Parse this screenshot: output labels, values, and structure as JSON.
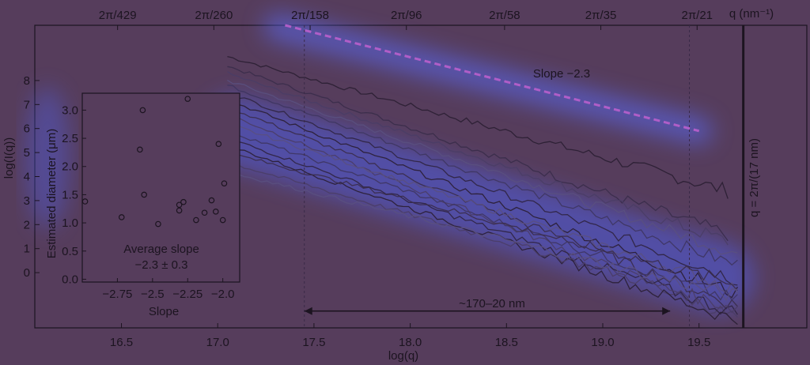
{
  "chart_data": [
    {
      "type": "line",
      "title": "",
      "xlabel": "log(q)",
      "ylabel": "log(I(q))",
      "xlim": [
        16.05,
        20.06
      ],
      "ylim": [
        -2.3,
        10.3
      ],
      "x_ticks": [
        16.5,
        17.0,
        17.5,
        18.0,
        18.5,
        19.0,
        19.5
      ],
      "x_tick_labels": [
        "16.5",
        "17.0",
        "17.5",
        "18.0",
        "18.5",
        "19.0",
        "19.5"
      ],
      "y_ticks": [
        0,
        1,
        2,
        3,
        4,
        5,
        6,
        7,
        8
      ],
      "y_tick_labels": [
        "0",
        "1",
        "2",
        "3",
        "4",
        "5",
        "6",
        "7",
        "8"
      ],
      "top_axis": {
        "label": "q (nm⁻¹)",
        "ticks": [
          {
            "x": 16.48,
            "label": "2π/429"
          },
          {
            "x": 16.98,
            "label": "2π/260"
          },
          {
            "x": 17.48,
            "label": "2π/158"
          },
          {
            "x": 17.98,
            "label": "2π/96"
          },
          {
            "x": 18.49,
            "label": "2π/58"
          },
          {
            "x": 18.99,
            "label": "2π/35"
          },
          {
            "x": 19.49,
            "label": "2π/21"
          }
        ]
      },
      "grid": false,
      "x_start": 17.05,
      "series": [
        {
          "x_end": 19.65,
          "y_start": 9.0,
          "y_end": 3.4
        },
        {
          "x_end": 19.65,
          "y_start": 8.6,
          "y_end": 1.6
        },
        {
          "x_end": 19.65,
          "y_start": 8.3,
          "y_end": 1.3
        },
        {
          "x_end": 19.7,
          "y_start": 8.0,
          "y_end": 0.8
        },
        {
          "x_end": 19.7,
          "y_start": 7.8,
          "y_end": 0.3
        },
        {
          "x_end": 19.7,
          "y_start": 7.5,
          "y_end": -0.3
        },
        {
          "x_end": 19.7,
          "y_start": 7.2,
          "y_end": -0.9
        },
        {
          "x_end": 19.7,
          "y_start": 6.9,
          "y_end": -1.4
        },
        {
          "x_end": 19.7,
          "y_start": 6.6,
          "y_end": -1.9
        },
        {
          "x_end": 19.7,
          "y_start": 6.2,
          "y_end": -0.7
        },
        {
          "x_end": 19.7,
          "y_start": 5.9,
          "y_end": -1.2
        },
        {
          "x_end": 19.7,
          "y_start": 5.6,
          "y_end": -1.7
        },
        {
          "x_end": 19.7,
          "y_start": 5.3,
          "y_end": -2.0
        },
        {
          "x_end": 19.7,
          "y_start": 5.0,
          "y_end": -0.5
        },
        {
          "x_end": 19.7,
          "y_start": 4.6,
          "y_end": -1.5
        },
        {
          "x_end": 19.7,
          "y_start": 4.2,
          "y_end": -1.0
        }
      ],
      "reference_line": {
        "label": "Slope −2.3",
        "x_start": 17.35,
        "y_start": 10.3,
        "x_end": 19.5,
        "y_end": 5.9
      },
      "vertical_line": {
        "x": 19.73,
        "label": "q = 2π/(17 nm)"
      },
      "range_arrow": {
        "x_start": 17.45,
        "x_end": 19.35,
        "y": -1.6,
        "label": "~170–20 nm"
      }
    },
    {
      "type": "scatter",
      "title": "",
      "xlabel": "Slope",
      "ylabel": "Estimated diameter (μm)",
      "xlim": [
        -3.0,
        -1.88
      ],
      "ylim": [
        -0.05,
        3.3
      ],
      "x_ticks": [
        -2.75,
        -2.5,
        -2.25,
        -2.0
      ],
      "x_tick_labels": [
        "−2.75",
        "−2.5",
        "−2.25",
        "−2.0"
      ],
      "y_ticks": [
        0.0,
        0.5,
        1.0,
        1.5,
        2.0,
        2.5,
        3.0
      ],
      "y_tick_labels": [
        "0.0",
        "0.5",
        "1.0",
        "1.5",
        "2.0",
        "2.5",
        "3.0"
      ],
      "points": [
        [
          -2.98,
          1.38
        ],
        [
          -2.72,
          1.1
        ],
        [
          -2.59,
          2.3
        ],
        [
          -2.57,
          3.0
        ],
        [
          -2.56,
          1.5
        ],
        [
          -2.46,
          0.98
        ],
        [
          -2.31,
          1.32
        ],
        [
          -2.31,
          1.22
        ],
        [
          -2.28,
          1.37
        ],
        [
          -2.25,
          3.2
        ],
        [
          -2.19,
          1.05
        ],
        [
          -2.13,
          1.18
        ],
        [
          -2.08,
          1.4
        ],
        [
          -2.05,
          1.2
        ],
        [
          -2.03,
          2.4
        ],
        [
          -2.0,
          1.05
        ],
        [
          -1.99,
          1.7
        ]
      ],
      "annotation": [
        "Average slope",
        "−2.3 ± 0.3"
      ]
    }
  ]
}
